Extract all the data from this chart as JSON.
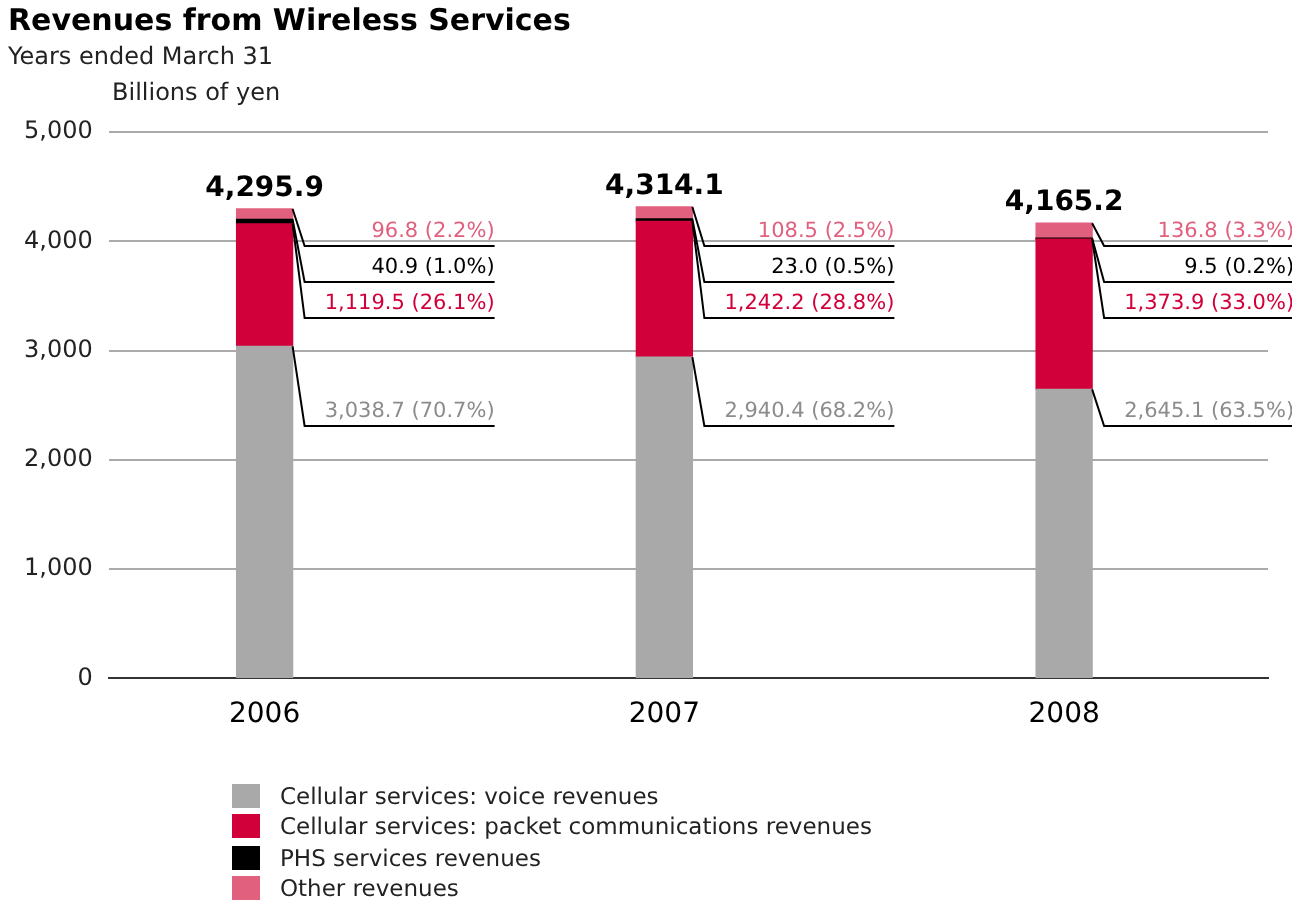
{
  "chart_data": {
    "type": "bar",
    "title": "Revenues from Wireless Services",
    "subtitle": "Years ended March 31",
    "ylabel": "Billions of yen",
    "categories": [
      "2006",
      "2007",
      "2008"
    ],
    "stacked": true,
    "series": [
      {
        "name": "Cellular services: voice revenues",
        "color": "#a8a9a8",
        "values": [
          3038.7,
          2940.4,
          2645.1
        ],
        "value_labels": [
          "3,038.7 (70.7%)",
          "2,940.4 (68.2%)",
          "2,645.1 (63.5%)"
        ]
      },
      {
        "name": "Cellular services: packet communications revenues",
        "color": "#d2003a",
        "values": [
          1119.5,
          1242.2,
          1373.9
        ],
        "value_labels": [
          "1,119.5 (26.1%)",
          "1,242.2 (28.8%)",
          "1,373.9 (33.0%)"
        ]
      },
      {
        "name": "PHS services revenues",
        "color": "#000000",
        "values": [
          40.9,
          23.0,
          9.5
        ],
        "value_labels": [
          "40.9 (1.0%)",
          "23.0 (0.5%)",
          "9.5 (0.2%)"
        ]
      },
      {
        "name": "Other revenues",
        "color": "#e0607e",
        "values": [
          96.8,
          108.5,
          136.8
        ],
        "value_labels": [
          "96.8 (2.2%)",
          "108.5 (2.5%)",
          "136.8 (3.3%)"
        ]
      }
    ],
    "totals": [
      "4,295.9",
      "4,314.1",
      "4,165.2"
    ],
    "ylim": [
      0,
      5000
    ],
    "yticks": [
      {
        "value": 0,
        "label": "0"
      },
      {
        "value": 1000,
        "label": "1,000"
      },
      {
        "value": 2000,
        "label": "2,000"
      },
      {
        "value": 3000,
        "label": "3,000"
      },
      {
        "value": 4000,
        "label": "4,000"
      },
      {
        "value": 5000,
        "label": "5,000"
      }
    ],
    "grid": "y",
    "legend": "bottom left"
  }
}
